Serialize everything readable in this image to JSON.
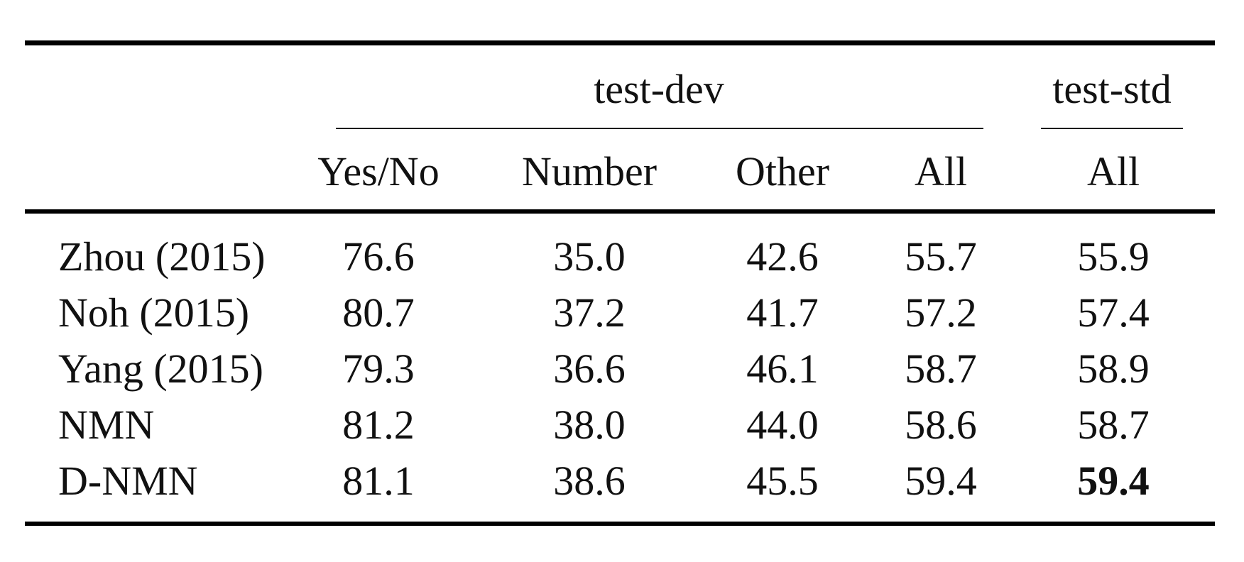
{
  "table": {
    "groups": [
      {
        "label": "test-dev"
      },
      {
        "label": "test-std"
      }
    ],
    "columns": [
      "Yes/No",
      "Number",
      "Other",
      "All",
      "All"
    ],
    "rows": [
      {
        "method": "Zhou (2015)",
        "values": [
          "76.6",
          "35.0",
          "42.6",
          "55.7",
          "55.9"
        ]
      },
      {
        "method": "Noh (2015)",
        "values": [
          "80.7",
          "37.2",
          "41.7",
          "57.2",
          "57.4"
        ]
      },
      {
        "method": "Yang (2015)",
        "values": [
          "79.3",
          "36.6",
          "46.1",
          "58.7",
          "58.9"
        ]
      },
      {
        "method": "NMN",
        "values": [
          "81.2",
          "38.0",
          "44.0",
          "58.6",
          "58.7"
        ]
      },
      {
        "method": "D-NMN",
        "values": [
          "81.1",
          "38.6",
          "45.5",
          "59.4",
          "59.4"
        ]
      }
    ],
    "bold_cell": {
      "row": 4,
      "col": 4
    }
  }
}
